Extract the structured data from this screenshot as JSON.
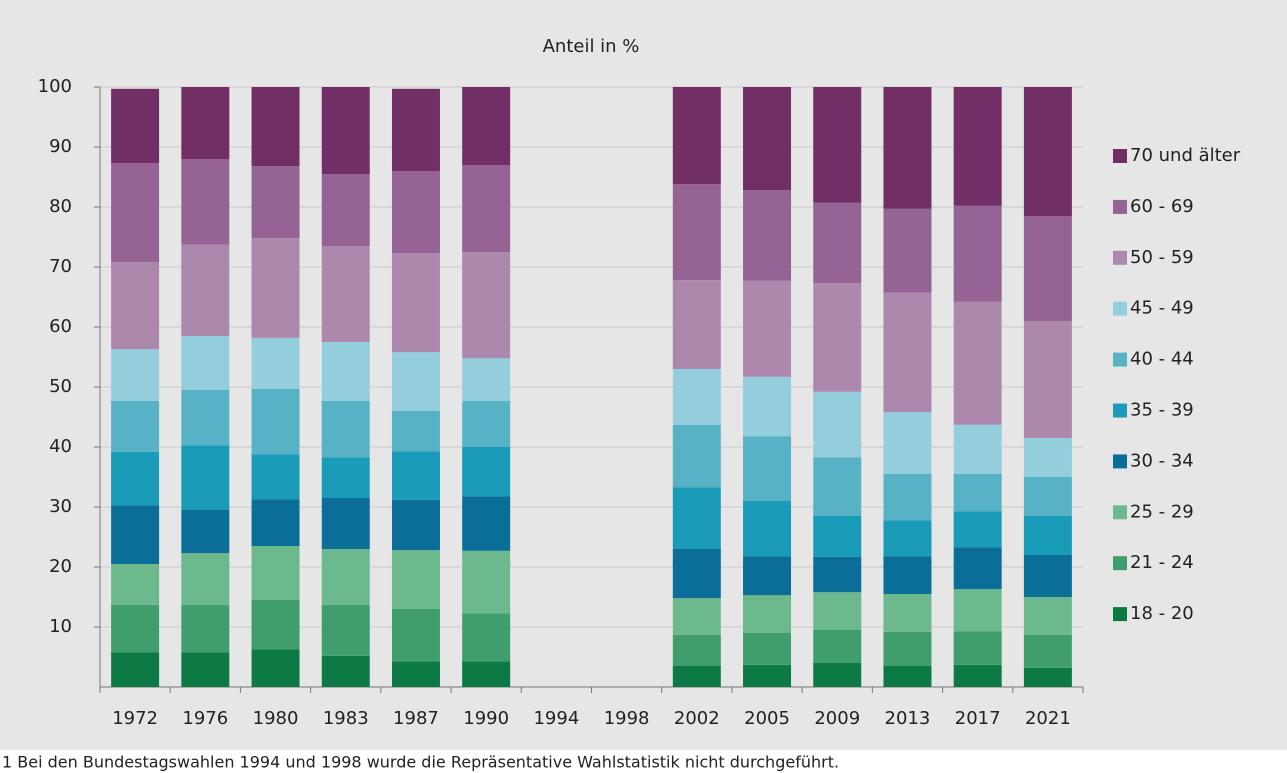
{
  "chart_data": {
    "type": "bar",
    "stacked": true,
    "title": "Anteil in %",
    "categories": [
      "1972",
      "1976",
      "1980",
      "1983",
      "1987",
      "1990",
      "1994",
      "1998",
      "2002",
      "2005",
      "2009",
      "2013",
      "2017",
      "2021"
    ],
    "series": [
      {
        "name": "18 - 20",
        "color": "#0d7a45",
        "values": [
          5.8,
          5.8,
          6.3,
          5.2,
          4.3,
          4.3,
          null,
          null,
          3.5,
          3.7,
          4.0,
          3.5,
          3.7,
          3.2
        ]
      },
      {
        "name": "21 - 24",
        "color": "#3f9e6c",
        "values": [
          7.9,
          7.9,
          8.2,
          8.5,
          8.7,
          8.0,
          null,
          null,
          5.2,
          5.3,
          5.5,
          5.7,
          5.6,
          5.5
        ]
      },
      {
        "name": "25 - 29",
        "color": "#6db98e",
        "values": [
          6.8,
          8.6,
          9.0,
          9.3,
          9.8,
          10.4,
          null,
          null,
          6.1,
          6.3,
          6.3,
          6.3,
          7.0,
          6.3
        ]
      },
      {
        "name": "30 - 34",
        "color": "#0b6e98",
        "values": [
          9.8,
          7.2,
          7.8,
          8.5,
          8.4,
          9.1,
          null,
          null,
          8.2,
          6.5,
          5.9,
          6.3,
          7.0,
          7.0
        ]
      },
      {
        "name": "35 - 39",
        "color": "#1a9cb8",
        "values": [
          8.9,
          10.8,
          7.5,
          6.8,
          8.1,
          8.2,
          null,
          null,
          10.3,
          9.2,
          6.8,
          6.0,
          6.0,
          6.5
        ]
      },
      {
        "name": "40 - 44",
        "color": "#58b2c6",
        "values": [
          8.5,
          9.2,
          10.9,
          9.4,
          6.7,
          7.7,
          null,
          null,
          10.4,
          10.8,
          9.8,
          7.7,
          6.2,
          6.5
        ]
      },
      {
        "name": "45 - 49",
        "color": "#94cedd",
        "values": [
          8.6,
          9.0,
          8.5,
          9.8,
          9.8,
          7.1,
          null,
          null,
          9.3,
          9.9,
          10.9,
          10.3,
          8.2,
          6.5
        ]
      },
      {
        "name": "50 - 59",
        "color": "#ad88ad",
        "values": [
          14.5,
          15.2,
          16.6,
          16.0,
          16.5,
          17.7,
          null,
          null,
          14.8,
          16.0,
          18.1,
          19.9,
          20.5,
          19.5
        ]
      },
      {
        "name": "60 - 69",
        "color": "#956494",
        "values": [
          16.5,
          14.3,
          12.0,
          12.0,
          13.7,
          14.5,
          null,
          null,
          16.0,
          15.1,
          13.4,
          14.0,
          16.0,
          17.5
        ]
      },
      {
        "name": "70 und älter",
        "color": "#722f66",
        "values": [
          12.4,
          12.0,
          13.2,
          14.5,
          13.7,
          13.0,
          null,
          null,
          16.2,
          17.2,
          19.3,
          20.3,
          19.8,
          21.5
        ]
      }
    ],
    "ylim": [
      0,
      100
    ],
    "yticks": [
      10,
      20,
      30,
      40,
      50,
      60,
      70,
      80,
      90,
      100
    ],
    "grid": true,
    "legend": "right",
    "footnote": "1 Bei den Bundestagswahlen 1994 und 1998 wurde die Repräsentative Wahlstatistik nicht durchgeführt."
  }
}
